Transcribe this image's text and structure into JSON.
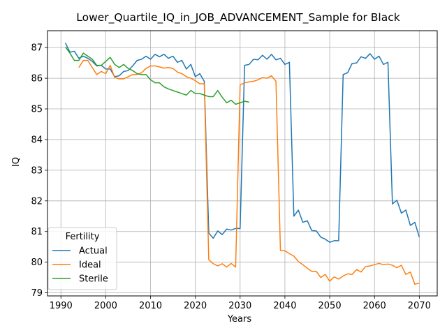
{
  "chart_data": {
    "type": "line",
    "title": "Lower_Quartile_IQ_in_JOB_ADVANCEMENT_Sample for Black",
    "xlabel": "Years",
    "ylabel": "IQ",
    "xlim": [
      1987,
      2074
    ],
    "ylim": [
      78.9,
      87.55
    ],
    "xticks": [
      1990,
      2000,
      2010,
      2020,
      2030,
      2040,
      2050,
      2060,
      2070
    ],
    "yticks": [
      79,
      80,
      81,
      82,
      83,
      84,
      85,
      86,
      87
    ],
    "grid": true,
    "legend": {
      "title": "Fertility",
      "placement": "lower-left"
    },
    "series": [
      {
        "name": "Actual",
        "color": "#1f77b4",
        "x": [
          1991,
          1992,
          1993,
          1994,
          1995,
          1996,
          1997,
          1998,
          1999,
          2000,
          2001,
          2002,
          2003,
          2004,
          2005,
          2006,
          2007,
          2008,
          2009,
          2010,
          2011,
          2012,
          2013,
          2014,
          2015,
          2016,
          2017,
          2018,
          2019,
          2020,
          2021,
          2022,
          2023,
          2024,
          2025,
          2026,
          2027,
          2028,
          2029,
          2030,
          2031,
          2032,
          2033,
          2034,
          2035,
          2036,
          2037,
          2038,
          2039,
          2040,
          2041,
          2042,
          2043,
          2044,
          2045,
          2046,
          2047,
          2048,
          2049,
          2050,
          2051,
          2052,
          2053,
          2054,
          2055,
          2056,
          2057,
          2058,
          2059,
          2060,
          2061,
          2062,
          2063,
          2064,
          2065,
          2066,
          2067,
          2068,
          2069,
          2070
        ],
        "y": [
          87.15,
          86.85,
          86.88,
          86.65,
          86.72,
          86.65,
          86.55,
          86.4,
          86.42,
          86.3,
          86.3,
          86.05,
          86.08,
          86.22,
          86.25,
          86.4,
          86.58,
          86.62,
          86.72,
          86.62,
          86.78,
          86.7,
          86.78,
          86.65,
          86.72,
          86.52,
          86.58,
          86.3,
          86.45,
          86.05,
          86.15,
          85.9,
          80.95,
          80.78,
          81.02,
          80.9,
          81.08,
          81.05,
          81.1,
          81.1,
          86.42,
          86.45,
          86.62,
          86.6,
          86.75,
          86.62,
          86.78,
          86.6,
          86.65,
          86.45,
          86.52,
          81.5,
          81.7,
          81.3,
          81.35,
          81.03,
          81.02,
          80.82,
          80.75,
          80.65,
          80.7,
          80.7,
          86.12,
          86.18,
          86.48,
          86.5,
          86.7,
          86.65,
          86.8,
          86.62,
          86.72,
          86.45,
          86.52,
          81.9,
          82.02,
          81.6,
          81.7,
          81.2,
          81.3,
          80.82
        ]
      },
      {
        "name": "Ideal",
        "color": "#ff7f0e",
        "x": [
          1994,
          1995,
          1996,
          1997,
          1998,
          1999,
          2000,
          2001,
          2002,
          2003,
          2004,
          2005,
          2006,
          2007,
          2008,
          2009,
          2010,
          2011,
          2012,
          2013,
          2014,
          2015,
          2016,
          2017,
          2018,
          2019,
          2020,
          2021,
          2022,
          2023,
          2024,
          2025,
          2026,
          2027,
          2028,
          2029,
          2030,
          2031,
          2032,
          2033,
          2034,
          2035,
          2036,
          2037,
          2038,
          2039,
          2040,
          2041,
          2042,
          2043,
          2044,
          2045,
          2046,
          2047,
          2048,
          2049,
          2050,
          2051,
          2052,
          2053,
          2054,
          2055,
          2056,
          2057,
          2058,
          2059,
          2060,
          2061,
          2062,
          2063,
          2064,
          2065,
          2066,
          2067,
          2068,
          2069,
          2070
        ],
        "y": [
          86.35,
          86.58,
          86.58,
          86.35,
          86.12,
          86.22,
          86.15,
          86.42,
          86.02,
          85.98,
          85.98,
          86.05,
          86.12,
          86.12,
          86.18,
          86.32,
          86.4,
          86.4,
          86.37,
          86.33,
          86.35,
          86.32,
          86.2,
          86.15,
          86.05,
          86.0,
          85.92,
          85.82,
          85.82,
          80.08,
          79.95,
          79.88,
          79.95,
          79.84,
          79.96,
          79.84,
          85.78,
          85.85,
          85.88,
          85.9,
          85.95,
          86.02,
          86.0,
          86.08,
          85.9,
          80.38,
          80.37,
          80.28,
          80.2,
          80.02,
          79.92,
          79.8,
          79.7,
          79.7,
          79.5,
          79.6,
          79.38,
          79.52,
          79.45,
          79.55,
          79.62,
          79.6,
          79.76,
          79.68,
          79.86,
          79.88,
          79.92,
          79.96,
          79.92,
          79.94,
          79.9,
          79.82,
          79.9,
          79.6,
          79.68,
          79.28,
          79.32
        ]
      },
      {
        "name": "Sterile",
        "color": "#2ca02c",
        "x": [
          1991,
          1992,
          1993,
          1994,
          1995,
          1996,
          1997,
          1998,
          1999,
          2000,
          2001,
          2002,
          2003,
          2004,
          2005,
          2006,
          2007,
          2008,
          2009,
          2010,
          2011,
          2012,
          2013,
          2014,
          2015,
          2016,
          2017,
          2018,
          2019,
          2020,
          2021,
          2022,
          2023,
          2024,
          2025,
          2026,
          2027,
          2028,
          2029,
          2030,
          2031,
          2032
        ],
        "y": [
          87.02,
          86.82,
          86.58,
          86.58,
          86.82,
          86.72,
          86.62,
          86.42,
          86.42,
          86.55,
          86.68,
          86.45,
          86.35,
          86.45,
          86.32,
          86.25,
          86.15,
          86.12,
          86.12,
          85.95,
          85.85,
          85.85,
          85.72,
          85.65,
          85.6,
          85.55,
          85.5,
          85.45,
          85.6,
          85.5,
          85.5,
          85.45,
          85.4,
          85.4,
          85.6,
          85.38,
          85.2,
          85.28,
          85.15,
          85.2,
          85.25,
          85.22
        ]
      }
    ]
  }
}
